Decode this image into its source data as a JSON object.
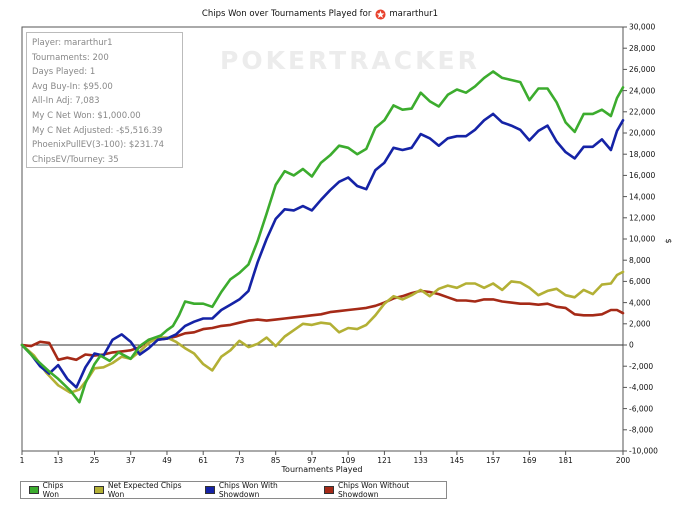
{
  "header": {
    "title_prefix": "Chips Won over Tournaments Played for",
    "player_name": "mararthur1",
    "logo_icon": "pokerstars-logo"
  },
  "watermark": "POKERTRACKER",
  "stats": [
    "Player: mararthur1",
    "Tournaments: 200",
    "Days Played: 1",
    "Avg Buy-In: $95.00",
    "All-In Adj: 7,083",
    "My C Net Won: $1,000.00",
    "My C Net Adjusted: -$5,516.39",
    "PhoenixPullEV(3-100): $231.74",
    "ChipsEV/Tourney: 35"
  ],
  "legend": [
    {
      "label": "Chips Won",
      "color": "#3cac2e"
    },
    {
      "label": "Net Expected Chips Won",
      "color": "#b3b035"
    },
    {
      "label": "Chips Won With Showdown",
      "color": "#1523a6"
    },
    {
      "label": "Chips Won Without Showdown",
      "color": "#a52a17"
    }
  ],
  "chart_data": {
    "type": "line",
    "title": "Chips Won over Tournaments Played for mararthur1",
    "xlabel": "Tournaments Played",
    "ylabel": "$",
    "xlim": [
      1,
      200
    ],
    "ylim": [
      -10000,
      30000
    ],
    "x_ticks": [
      1,
      13,
      25,
      37,
      49,
      61,
      73,
      85,
      97,
      109,
      121,
      133,
      145,
      157,
      169,
      181,
      200
    ],
    "y_ticks": [
      -10000,
      -8000,
      -6000,
      -4000,
      -2000,
      0,
      2000,
      4000,
      6000,
      8000,
      10000,
      12000,
      14000,
      16000,
      18000,
      20000,
      22000,
      24000,
      26000,
      28000,
      30000
    ],
    "y_tick_labels": [
      "-10,000",
      "-8,000",
      "-6,000",
      "-4,000",
      "-2,000",
      "0",
      "2,000",
      "4,000",
      "6,000",
      "8,000",
      "10,000",
      "12,000",
      "14,000",
      "16,000",
      "18,000",
      "20,000",
      "22,000",
      "24,000",
      "26,000",
      "28,000",
      "30,000"
    ],
    "grid": false,
    "legend_position": "bottom",
    "series": [
      {
        "name": "Chips Won",
        "color": "#3cac2e",
        "points": [
          [
            1,
            0
          ],
          [
            5,
            -1200
          ],
          [
            10,
            -2500
          ],
          [
            13,
            -3200
          ],
          [
            17,
            -4300
          ],
          [
            20,
            -5400
          ],
          [
            22,
            -3600
          ],
          [
            25,
            -1800
          ],
          [
            27,
            -1000
          ],
          [
            30,
            -1500
          ],
          [
            33,
            -700
          ],
          [
            37,
            -1300
          ],
          [
            40,
            -100
          ],
          [
            43,
            500
          ],
          [
            47,
            900
          ],
          [
            49,
            1400
          ],
          [
            51,
            1800
          ],
          [
            53,
            2800
          ],
          [
            55,
            4100
          ],
          [
            58,
            3900
          ],
          [
            61,
            3900
          ],
          [
            64,
            3600
          ],
          [
            67,
            5000
          ],
          [
            70,
            6200
          ],
          [
            73,
            6800
          ],
          [
            76,
            7600
          ],
          [
            79,
            9800
          ],
          [
            82,
            12400
          ],
          [
            85,
            15100
          ],
          [
            88,
            16400
          ],
          [
            91,
            16000
          ],
          [
            94,
            16600
          ],
          [
            97,
            15900
          ],
          [
            100,
            17200
          ],
          [
            103,
            17900
          ],
          [
            106,
            18800
          ],
          [
            109,
            18600
          ],
          [
            112,
            18000
          ],
          [
            115,
            18500
          ],
          [
            118,
            20500
          ],
          [
            121,
            21200
          ],
          [
            124,
            22600
          ],
          [
            127,
            22200
          ],
          [
            130,
            22300
          ],
          [
            133,
            23800
          ],
          [
            136,
            23000
          ],
          [
            139,
            22500
          ],
          [
            142,
            23600
          ],
          [
            145,
            24100
          ],
          [
            148,
            23800
          ],
          [
            151,
            24400
          ],
          [
            154,
            25200
          ],
          [
            157,
            25800
          ],
          [
            160,
            25200
          ],
          [
            163,
            25000
          ],
          [
            166,
            24800
          ],
          [
            169,
            23100
          ],
          [
            172,
            24200
          ],
          [
            175,
            24200
          ],
          [
            178,
            22900
          ],
          [
            181,
            21000
          ],
          [
            184,
            20100
          ],
          [
            187,
            21800
          ],
          [
            190,
            21800
          ],
          [
            193,
            22200
          ],
          [
            196,
            21600
          ],
          [
            198,
            23300
          ],
          [
            200,
            24300
          ]
        ]
      },
      {
        "name": "Net Expected Chips Won",
        "color": "#b3b035",
        "points": [
          [
            1,
            0
          ],
          [
            5,
            -1000
          ],
          [
            9,
            -2600
          ],
          [
            13,
            -3800
          ],
          [
            17,
            -4500
          ],
          [
            20,
            -4200
          ],
          [
            23,
            -3100
          ],
          [
            25,
            -2200
          ],
          [
            28,
            -2100
          ],
          [
            31,
            -1700
          ],
          [
            34,
            -1100
          ],
          [
            37,
            -1300
          ],
          [
            40,
            -600
          ],
          [
            43,
            200
          ],
          [
            46,
            700
          ],
          [
            49,
            700
          ],
          [
            52,
            300
          ],
          [
            55,
            -300
          ],
          [
            58,
            -800
          ],
          [
            61,
            -1800
          ],
          [
            64,
            -2400
          ],
          [
            67,
            -1100
          ],
          [
            70,
            -500
          ],
          [
            73,
            400
          ],
          [
            76,
            -200
          ],
          [
            79,
            100
          ],
          [
            82,
            700
          ],
          [
            85,
            -100
          ],
          [
            88,
            800
          ],
          [
            91,
            1400
          ],
          [
            94,
            2000
          ],
          [
            97,
            1900
          ],
          [
            100,
            2100
          ],
          [
            103,
            2000
          ],
          [
            106,
            1200
          ],
          [
            109,
            1600
          ],
          [
            112,
            1500
          ],
          [
            115,
            1900
          ],
          [
            118,
            2800
          ],
          [
            121,
            3900
          ],
          [
            124,
            4600
          ],
          [
            127,
            4300
          ],
          [
            130,
            4700
          ],
          [
            133,
            5200
          ],
          [
            136,
            4600
          ],
          [
            139,
            5300
          ],
          [
            142,
            5600
          ],
          [
            145,
            5400
          ],
          [
            148,
            5800
          ],
          [
            151,
            5800
          ],
          [
            154,
            5400
          ],
          [
            157,
            5800
          ],
          [
            160,
            5200
          ],
          [
            163,
            6000
          ],
          [
            166,
            5900
          ],
          [
            169,
            5400
          ],
          [
            172,
            4700
          ],
          [
            175,
            5100
          ],
          [
            178,
            5300
          ],
          [
            181,
            4700
          ],
          [
            184,
            4500
          ],
          [
            187,
            5200
          ],
          [
            190,
            4800
          ],
          [
            193,
            5700
          ],
          [
            196,
            5800
          ],
          [
            198,
            6600
          ],
          [
            200,
            6900
          ]
        ]
      },
      {
        "name": "Chips Won With Showdown",
        "color": "#1523a6",
        "points": [
          [
            1,
            0
          ],
          [
            4,
            -900
          ],
          [
            7,
            -2000
          ],
          [
            10,
            -2700
          ],
          [
            13,
            -1900
          ],
          [
            16,
            -3200
          ],
          [
            19,
            -4000
          ],
          [
            22,
            -2100
          ],
          [
            25,
            -800
          ],
          [
            28,
            -1000
          ],
          [
            31,
            500
          ],
          [
            34,
            1000
          ],
          [
            37,
            300
          ],
          [
            40,
            -900
          ],
          [
            43,
            -300
          ],
          [
            46,
            500
          ],
          [
            49,
            600
          ],
          [
            52,
            1000
          ],
          [
            55,
            1800
          ],
          [
            58,
            2200
          ],
          [
            61,
            2500
          ],
          [
            64,
            2500
          ],
          [
            67,
            3300
          ],
          [
            70,
            3800
          ],
          [
            73,
            4300
          ],
          [
            76,
            5100
          ],
          [
            79,
            7800
          ],
          [
            82,
            10000
          ],
          [
            85,
            11900
          ],
          [
            88,
            12800
          ],
          [
            91,
            12700
          ],
          [
            94,
            13100
          ],
          [
            97,
            12700
          ],
          [
            100,
            13700
          ],
          [
            103,
            14600
          ],
          [
            106,
            15400
          ],
          [
            109,
            15800
          ],
          [
            112,
            15000
          ],
          [
            115,
            14700
          ],
          [
            118,
            16500
          ],
          [
            121,
            17200
          ],
          [
            124,
            18600
          ],
          [
            127,
            18400
          ],
          [
            130,
            18600
          ],
          [
            133,
            19900
          ],
          [
            136,
            19500
          ],
          [
            139,
            18800
          ],
          [
            142,
            19500
          ],
          [
            145,
            19700
          ],
          [
            148,
            19700
          ],
          [
            151,
            20300
          ],
          [
            154,
            21200
          ],
          [
            157,
            21800
          ],
          [
            160,
            21000
          ],
          [
            163,
            20700
          ],
          [
            166,
            20300
          ],
          [
            169,
            19300
          ],
          [
            172,
            20200
          ],
          [
            175,
            20700
          ],
          [
            178,
            19200
          ],
          [
            181,
            18200
          ],
          [
            184,
            17600
          ],
          [
            187,
            18700
          ],
          [
            190,
            18700
          ],
          [
            193,
            19400
          ],
          [
            196,
            18400
          ],
          [
            198,
            20200
          ],
          [
            200,
            21200
          ]
        ]
      },
      {
        "name": "Chips Won Without Showdown",
        "color": "#a52a17",
        "points": [
          [
            1,
            0
          ],
          [
            4,
            -100
          ],
          [
            7,
            300
          ],
          [
            10,
            200
          ],
          [
            13,
            -1400
          ],
          [
            16,
            -1200
          ],
          [
            19,
            -1400
          ],
          [
            22,
            -900
          ],
          [
            25,
            -1000
          ],
          [
            28,
            -900
          ],
          [
            31,
            -700
          ],
          [
            34,
            -600
          ],
          [
            37,
            -500
          ],
          [
            40,
            -200
          ],
          [
            43,
            500
          ],
          [
            46,
            500
          ],
          [
            49,
            600
          ],
          [
            52,
            800
          ],
          [
            55,
            1100
          ],
          [
            58,
            1200
          ],
          [
            61,
            1500
          ],
          [
            64,
            1600
          ],
          [
            67,
            1800
          ],
          [
            70,
            1900
          ],
          [
            73,
            2100
          ],
          [
            76,
            2300
          ],
          [
            79,
            2400
          ],
          [
            82,
            2300
          ],
          [
            85,
            2400
          ],
          [
            88,
            2500
          ],
          [
            91,
            2600
          ],
          [
            94,
            2700
          ],
          [
            97,
            2800
          ],
          [
            100,
            2900
          ],
          [
            103,
            3100
          ],
          [
            106,
            3200
          ],
          [
            109,
            3300
          ],
          [
            112,
            3400
          ],
          [
            115,
            3500
          ],
          [
            118,
            3700
          ],
          [
            121,
            4000
          ],
          [
            124,
            4400
          ],
          [
            127,
            4600
          ],
          [
            130,
            4900
          ],
          [
            133,
            5100
          ],
          [
            136,
            5000
          ],
          [
            139,
            4800
          ],
          [
            142,
            4500
          ],
          [
            145,
            4200
          ],
          [
            148,
            4200
          ],
          [
            151,
            4100
          ],
          [
            154,
            4300
          ],
          [
            157,
            4300
          ],
          [
            160,
            4100
          ],
          [
            163,
            4000
          ],
          [
            166,
            3900
          ],
          [
            169,
            3900
          ],
          [
            172,
            3800
          ],
          [
            175,
            3900
          ],
          [
            178,
            3600
          ],
          [
            181,
            3500
          ],
          [
            184,
            2900
          ],
          [
            187,
            2800
          ],
          [
            190,
            2800
          ],
          [
            193,
            2900
          ],
          [
            196,
            3300
          ],
          [
            198,
            3300
          ],
          [
            200,
            3000
          ]
        ]
      }
    ]
  }
}
